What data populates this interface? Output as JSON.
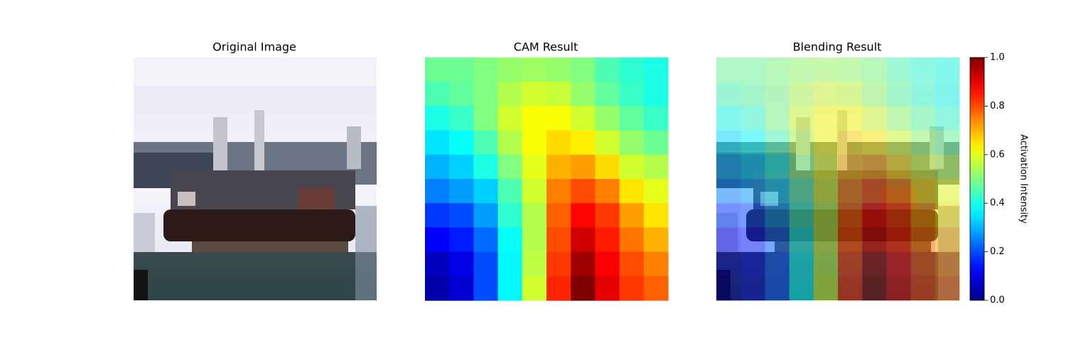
{
  "chart_data": {
    "type": "heatmap",
    "titles": [
      "Original Image",
      "CAM Result",
      "Blending Result"
    ],
    "colormap": "jet",
    "values": [
      [
        0.48,
        0.48,
        0.5,
        0.52,
        0.53,
        0.52,
        0.5,
        0.45,
        0.42,
        0.4
      ],
      [
        0.45,
        0.47,
        0.5,
        0.55,
        0.58,
        0.57,
        0.52,
        0.47,
        0.43,
        0.4
      ],
      [
        0.4,
        0.43,
        0.5,
        0.58,
        0.62,
        0.62,
        0.58,
        0.52,
        0.47,
        0.43
      ],
      [
        0.35,
        0.38,
        0.45,
        0.55,
        0.62,
        0.66,
        0.64,
        0.58,
        0.52,
        0.48
      ],
      [
        0.3,
        0.33,
        0.4,
        0.5,
        0.6,
        0.7,
        0.72,
        0.66,
        0.58,
        0.55
      ],
      [
        0.25,
        0.28,
        0.33,
        0.45,
        0.58,
        0.75,
        0.8,
        0.75,
        0.65,
        0.6
      ],
      [
        0.18,
        0.2,
        0.28,
        0.42,
        0.55,
        0.78,
        0.87,
        0.82,
        0.72,
        0.65
      ],
      [
        0.12,
        0.15,
        0.23,
        0.38,
        0.55,
        0.8,
        0.92,
        0.85,
        0.76,
        0.7
      ],
      [
        0.06,
        0.1,
        0.2,
        0.37,
        0.56,
        0.82,
        0.97,
        0.88,
        0.8,
        0.75
      ],
      [
        0.04,
        0.08,
        0.2,
        0.37,
        0.58,
        0.84,
        1.0,
        0.9,
        0.82,
        0.78
      ]
    ],
    "clim": [
      0,
      1
    ],
    "cticks": [
      {
        "value": 0,
        "label": "0.0"
      },
      {
        "value": 0.2,
        "label": "0.2"
      },
      {
        "value": 0.4,
        "label": "0.4"
      },
      {
        "value": 0.6,
        "label": "0.6"
      },
      {
        "value": 0.8,
        "label": "0.8"
      },
      {
        "value": 1,
        "label": "1.0"
      }
    ],
    "colorbar_label": "Activation Intensity"
  }
}
